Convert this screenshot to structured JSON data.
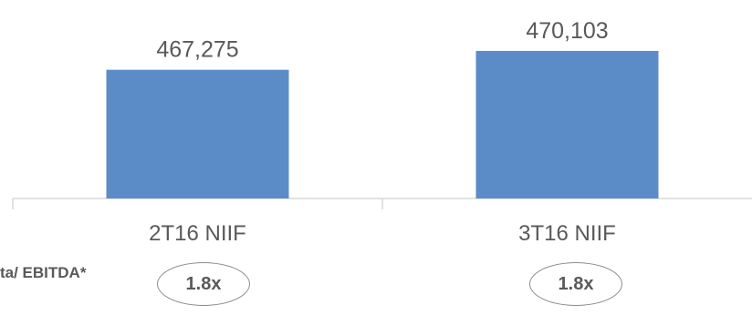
{
  "chart_data": {
    "type": "bar",
    "categories": [
      "2T16 NIIF",
      "3T16 NIIF"
    ],
    "values": [
      467275,
      470103
    ],
    "data_labels": [
      "467,275",
      "470,103"
    ],
    "color": "#5b8cc8",
    "grid": false,
    "legend": "none"
  },
  "metric": {
    "label": "ta/  EBITDA*",
    "values": [
      "1.8x",
      "1.8x"
    ]
  }
}
